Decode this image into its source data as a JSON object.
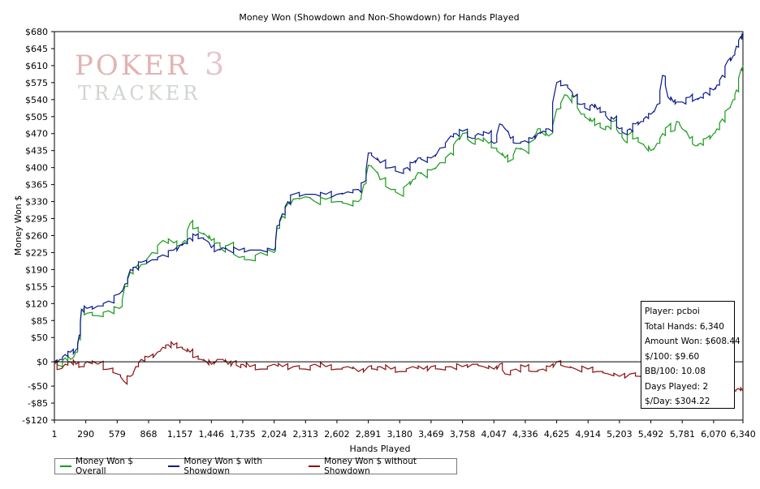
{
  "chart_data": {
    "type": "line",
    "title": "Money Won (Showdown and Non-Showdown) for Hands Played",
    "xlabel": "Hands Played",
    "ylabel": "Money Won $",
    "xlim": [
      1,
      6340
    ],
    "ylim": [
      -120,
      680
    ],
    "x_ticks": [
      1,
      290,
      579,
      868,
      1157,
      1446,
      1735,
      2024,
      2313,
      2602,
      2891,
      3180,
      3469,
      3758,
      4047,
      4336,
      4625,
      4914,
      5203,
      5492,
      5781,
      6070,
      6340
    ],
    "x_tick_labels": [
      "1",
      "290",
      "579",
      "868",
      "1,157",
      "1,446",
      "1,735",
      "2,024",
      "2,313",
      "2,602",
      "2,891",
      "3,180",
      "3,469",
      "3,758",
      "4,047",
      "4,336",
      "4,625",
      "4,914",
      "5,203",
      "5,492",
      "5,781",
      "6,070",
      "6,340"
    ],
    "y_ticks": [
      -120,
      -85,
      -50,
      0,
      50,
      85,
      120,
      155,
      190,
      225,
      260,
      295,
      330,
      365,
      400,
      435,
      470,
      505,
      540,
      575,
      610,
      645,
      680
    ],
    "y_tick_labels": [
      "-$120",
      "-$85",
      "-$50",
      "$0",
      "$50",
      "$85",
      "$120",
      "$155",
      "$190",
      "$225",
      "$260",
      "$295",
      "$330",
      "$365",
      "$400",
      "$435",
      "$470",
      "$505",
      "$540",
      "$575",
      "$610",
      "$645",
      "$680"
    ],
    "grid": false,
    "legend_position": "bottom",
    "series": [
      {
        "name": "Money Won $ Overall",
        "color": "#1a9a1a",
        "x": [
          1,
          50,
          100,
          150,
          200,
          230,
          250,
          300,
          400,
          500,
          600,
          650,
          700,
          750,
          800,
          900,
          1000,
          1100,
          1157,
          1200,
          1250,
          1300,
          1350,
          1400,
          1446,
          1500,
          1550,
          1600,
          1700,
          1800,
          1900,
          2024,
          2050,
          2100,
          2150,
          2200,
          2313,
          2400,
          2500,
          2602,
          2700,
          2800,
          2850,
          2891,
          2950,
          3000,
          3100,
          3180,
          3250,
          3300,
          3350,
          3400,
          3469,
          3550,
          3650,
          3700,
          3758,
          3850,
          3900,
          4000,
          4047,
          4100,
          4150,
          4200,
          4250,
          4336,
          4400,
          4450,
          4500,
          4550,
          4625,
          4700,
          4750,
          4780,
          4850,
          4914,
          4950,
          5000,
          5050,
          5100,
          5150,
          5203,
          5250,
          5300,
          5350,
          5400,
          5450,
          5492,
          5550,
          5600,
          5650,
          5700,
          5730,
          5781,
          5850,
          5900,
          5950,
          6000,
          6070,
          6100,
          6150,
          6200,
          6250,
          6280,
          6320,
          6340
        ],
        "y": [
          0,
          -8,
          8,
          5,
          20,
          50,
          105,
          100,
          95,
          105,
          110,
          155,
          185,
          195,
          200,
          225,
          250,
          245,
          240,
          250,
          285,
          275,
          265,
          260,
          250,
          245,
          230,
          240,
          215,
          210,
          225,
          225,
          275,
          300,
          325,
          335,
          340,
          330,
          335,
          330,
          325,
          330,
          365,
          405,
          395,
          375,
          355,
          345,
          365,
          375,
          390,
          385,
          395,
          410,
          430,
          455,
          470,
          450,
          460,
          450,
          440,
          430,
          420,
          415,
          440,
          435,
          455,
          480,
          470,
          465,
          520,
          550,
          540,
          545,
          510,
          500,
          495,
          490,
          480,
          485,
          495,
          470,
          455,
          470,
          460,
          450,
          440,
          435,
          450,
          470,
          485,
          475,
          495,
          480,
          460,
          445,
          450,
          460,
          470,
          480,
          500,
          520,
          540,
          560,
          600,
          610
        ]
      },
      {
        "name": "Money Won $ with Showdown",
        "color": "#0a1a8a",
        "x": [
          1,
          50,
          100,
          150,
          200,
          230,
          250,
          300,
          400,
          500,
          600,
          650,
          700,
          750,
          800,
          900,
          1000,
          1100,
          1157,
          1200,
          1250,
          1300,
          1350,
          1400,
          1446,
          1500,
          1550,
          1600,
          1700,
          1800,
          1900,
          2024,
          2050,
          2100,
          2150,
          2200,
          2313,
          2400,
          2500,
          2602,
          2700,
          2800,
          2850,
          2891,
          2950,
          3000,
          3100,
          3180,
          3250,
          3300,
          3350,
          3400,
          3469,
          3550,
          3650,
          3700,
          3758,
          3850,
          3900,
          4000,
          4047,
          4100,
          4150,
          4200,
          4250,
          4336,
          4400,
          4450,
          4500,
          4550,
          4625,
          4700,
          4750,
          4780,
          4850,
          4914,
          4950,
          5000,
          5050,
          5100,
          5150,
          5203,
          5250,
          5300,
          5350,
          5400,
          5450,
          5492,
          5550,
          5600,
          5650,
          5700,
          5730,
          5781,
          5850,
          5900,
          5950,
          6000,
          6070,
          6100,
          6150,
          6200,
          6250,
          6280,
          6320,
          6340
        ],
        "y": [
          0,
          5,
          15,
          20,
          25,
          55,
          108,
          110,
          115,
          125,
          140,
          160,
          190,
          195,
          205,
          210,
          220,
          230,
          240,
          245,
          255,
          260,
          255,
          250,
          235,
          230,
          235,
          230,
          230,
          230,
          230,
          230,
          280,
          305,
          330,
          345,
          345,
          345,
          345,
          345,
          350,
          355,
          370,
          430,
          420,
          410,
          400,
          390,
          400,
          410,
          420,
          415,
          420,
          440,
          465,
          470,
          475,
          460,
          470,
          470,
          450,
          490,
          480,
          460,
          450,
          455,
          460,
          470,
          475,
          480,
          575,
          570,
          560,
          545,
          530,
          520,
          530,
          520,
          515,
          500,
          500,
          480,
          470,
          480,
          490,
          495,
          505,
          510,
          530,
          590,
          545,
          535,
          535,
          535,
          545,
          540,
          545,
          555,
          560,
          570,
          590,
          620,
          630,
          650,
          670,
          670
        ]
      },
      {
        "name": "Money Won $ without Showdown",
        "color": "#8a1010",
        "x": [
          1,
          50,
          100,
          150,
          200,
          250,
          300,
          400,
          500,
          579,
          640,
          700,
          750,
          800,
          868,
          950,
          1000,
          1050,
          1100,
          1157,
          1200,
          1250,
          1300,
          1350,
          1400,
          1446,
          1500,
          1550,
          1600,
          1650,
          1700,
          1735,
          1800,
          1900,
          2024,
          2100,
          2200,
          2313,
          2400,
          2500,
          2602,
          2700,
          2800,
          2891,
          2950,
          3000,
          3100,
          3180,
          3300,
          3400,
          3469,
          3550,
          3650,
          3758,
          3850,
          3950,
          4047,
          4100,
          4150,
          4250,
          4336,
          4400,
          4500,
          4560,
          4625,
          4700,
          4800,
          4914,
          5000,
          5100,
          5203,
          5300,
          5400,
          5492,
          5600,
          5700,
          5781,
          5900,
          6000,
          6070,
          6150,
          6200,
          6250,
          6300,
          6340
        ],
        "y": [
          -5,
          -15,
          -5,
          0,
          -5,
          -10,
          0,
          -5,
          -15,
          -25,
          -40,
          -30,
          -10,
          5,
          10,
          20,
          30,
          35,
          35,
          30,
          25,
          20,
          10,
          5,
          0,
          -5,
          5,
          5,
          -5,
          0,
          -10,
          -5,
          -10,
          -15,
          -5,
          -10,
          -10,
          -15,
          -5,
          -10,
          -15,
          -10,
          -20,
          -10,
          -15,
          -10,
          -15,
          -20,
          -10,
          -15,
          -10,
          -15,
          -10,
          -10,
          -5,
          -10,
          -15,
          -5,
          -25,
          -15,
          -10,
          -20,
          -15,
          -10,
          0,
          -10,
          -15,
          -15,
          -20,
          -25,
          -30,
          -25,
          -30,
          -35,
          -40,
          -45,
          -40,
          -45,
          -50,
          -55,
          -50,
          -55,
          -60,
          -55,
          -60
        ]
      }
    ]
  },
  "stats_box": {
    "player": "Player: pcboi",
    "total_hands": "Total Hands: 6,340",
    "amount_won": "Amount Won: $608.44",
    "per_100": "$/100: $9.60",
    "bb_100": "BB/100: 10.08",
    "days_played": "Days Played: 2",
    "per_day": "$/Day: $304.22"
  },
  "watermark": {
    "line1": "POKER",
    "digit": "3",
    "line2": "TRACKER",
    "color": "#d9a0a0"
  },
  "colors": {
    "zero_line": "#000000",
    "axis": "#000000"
  }
}
